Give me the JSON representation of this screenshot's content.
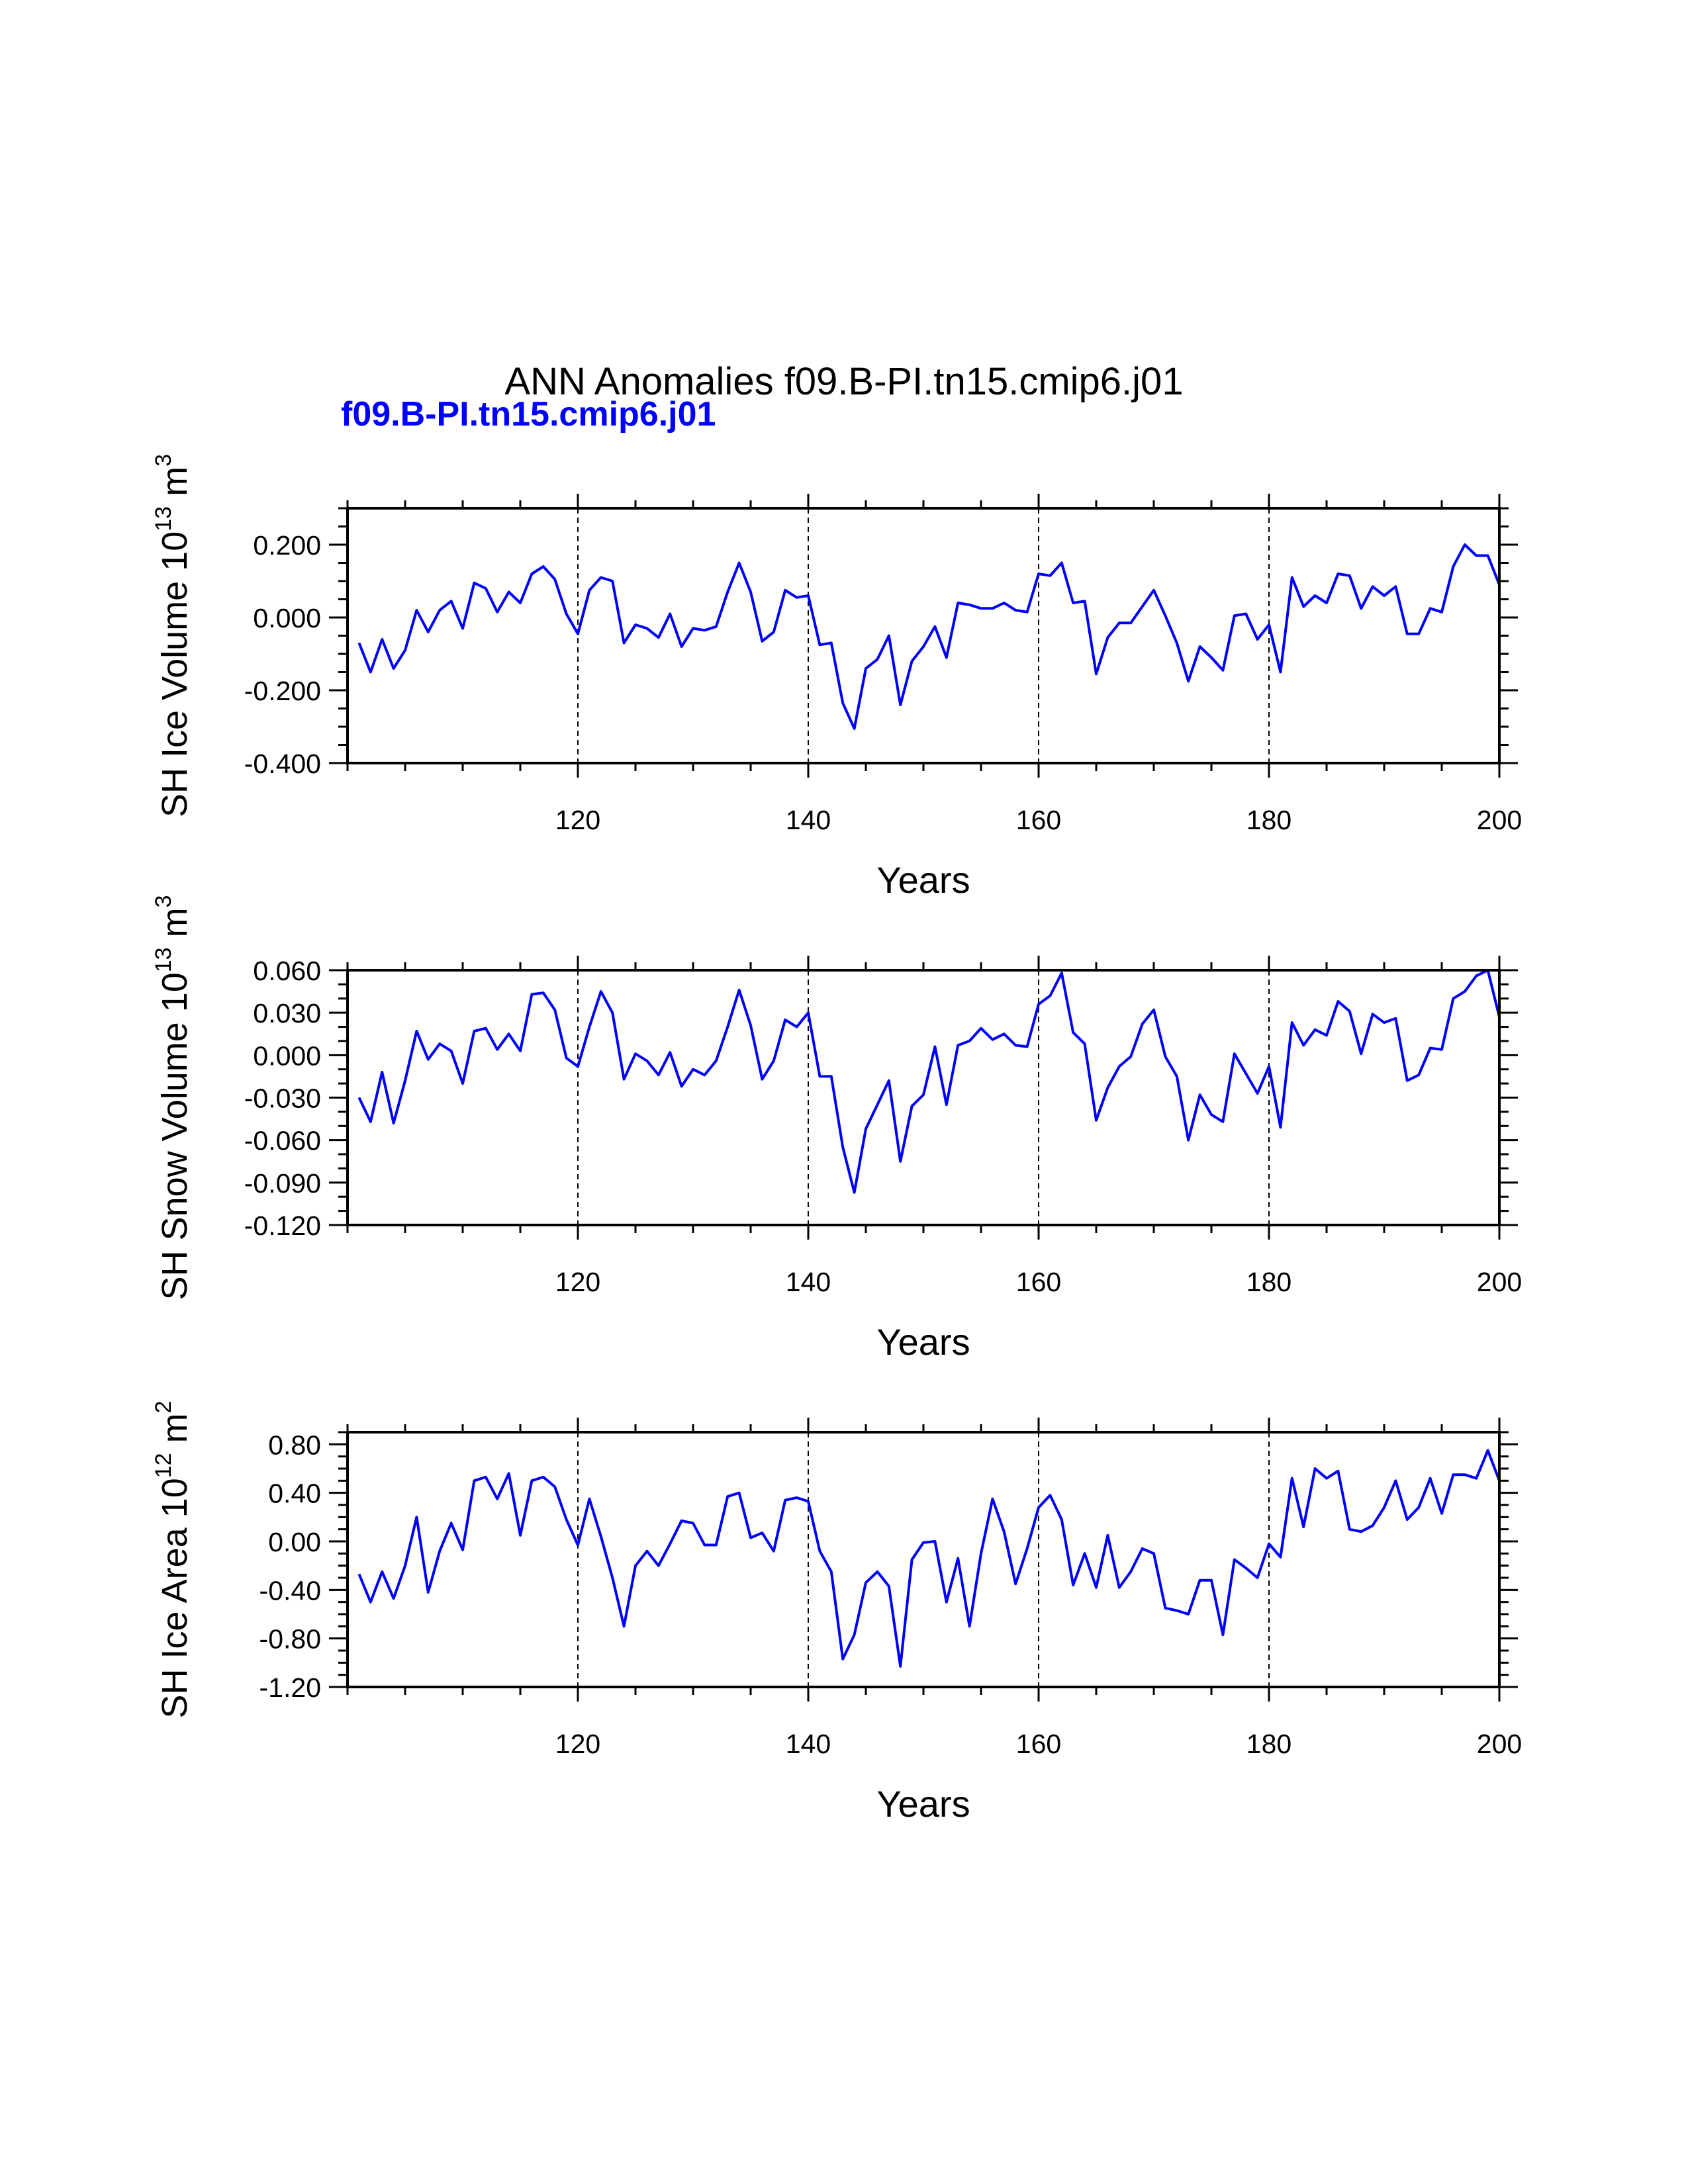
{
  "chart_data": [
    {
      "type": "line",
      "title": "ANN Anomalies f09.B-PI.tn15.cmip6.j01",
      "xlabel": "Years",
      "ylabel": "SH Ice Volume 10",
      "ylabel_exp": "13",
      "ylabel_unit": " m",
      "ylabel_unit_exp": "3",
      "xlim": [
        100,
        200
      ],
      "ylim": [
        -0.4,
        0.3
      ],
      "xticks": [
        120,
        140,
        160,
        180,
        200
      ],
      "yticks": [
        -0.4,
        -0.2,
        0.0,
        0.2
      ],
      "yticklabels": [
        "-0.400",
        "-0.200",
        "0.000",
        "0.200"
      ],
      "yminor": 0.05,
      "line_color": "#0000ff",
      "series": [
        {
          "name": "f09.B-PI.tn15.cmip6.j01",
          "x": [
            101,
            102,
            103,
            104,
            105,
            106,
            107,
            108,
            109,
            110,
            111,
            112,
            113,
            114,
            115,
            116,
            117,
            118,
            119,
            120,
            121,
            122,
            123,
            124,
            125,
            126,
            127,
            128,
            129,
            130,
            131,
            132,
            133,
            134,
            135,
            136,
            137,
            138,
            139,
            140,
            141,
            142,
            143,
            144,
            145,
            146,
            147,
            148,
            149,
            150,
            151,
            152,
            153,
            154,
            155,
            156,
            157,
            158,
            159,
            160,
            161,
            162,
            163,
            164,
            165,
            166,
            167,
            168,
            169,
            170,
            171,
            172,
            173,
            174,
            175,
            176,
            177,
            178,
            179,
            180,
            181,
            182,
            183,
            184,
            185,
            186,
            187,
            188,
            189,
            190,
            191,
            192,
            193,
            194,
            195,
            196,
            197,
            198,
            199,
            200
          ],
          "values": [
            -0.07,
            -0.15,
            -0.06,
            -0.14,
            -0.09,
            0.02,
            -0.04,
            0.02,
            0.045,
            -0.03,
            0.095,
            0.08,
            0.015,
            0.07,
            0.04,
            0.12,
            0.14,
            0.105,
            0.01,
            -0.045,
            0.075,
            0.11,
            0.1,
            -0.07,
            -0.02,
            -0.03,
            -0.055,
            0.01,
            -0.08,
            -0.03,
            -0.035,
            -0.025,
            0.07,
            0.15,
            0.07,
            -0.065,
            -0.04,
            0.075,
            0.055,
            0.06,
            -0.075,
            -0.07,
            -0.235,
            -0.305,
            -0.14,
            -0.115,
            -0.05,
            -0.24,
            -0.12,
            -0.08,
            -0.025,
            -0.11,
            0.04,
            0.035,
            0.025,
            0.025,
            0.04,
            0.02,
            0.015,
            0.12,
            0.115,
            0.15,
            0.04,
            0.045,
            -0.155,
            -0.055,
            -0.015,
            -0.015,
            0.03,
            0.075,
            0.005,
            -0.07,
            -0.175,
            -0.08,
            -0.11,
            -0.145,
            0.005,
            0.01,
            -0.06,
            -0.02,
            -0.15,
            0.11,
            0.03,
            0.06,
            0.04,
            0.12,
            0.115,
            0.025,
            0.085,
            0.06,
            0.085,
            -0.045,
            -0.045,
            0.025,
            0.015,
            0.14,
            0.2,
            0.17,
            0.17,
            0.09
          ]
        }
      ]
    },
    {
      "type": "line",
      "xlabel": "Years",
      "ylabel": "SH Snow Volume 10",
      "ylabel_exp": "13",
      "ylabel_unit": " m",
      "ylabel_unit_exp": "3",
      "xlim": [
        100,
        200
      ],
      "ylim": [
        -0.12,
        0.06
      ],
      "xticks": [
        120,
        140,
        160,
        180,
        200
      ],
      "yticks": [
        -0.12,
        -0.09,
        -0.06,
        -0.03,
        0.0,
        0.03,
        0.06
      ],
      "yticklabels": [
        "-0.120",
        "-0.090",
        "-0.060",
        "-0.030",
        "0.000",
        "0.030",
        "0.060"
      ],
      "yminor": 0.01,
      "line_color": "#0000ff",
      "series": [
        {
          "name": "f09.B-PI.tn15.cmip6.j01",
          "x": [
            101,
            102,
            103,
            104,
            105,
            106,
            107,
            108,
            109,
            110,
            111,
            112,
            113,
            114,
            115,
            116,
            117,
            118,
            119,
            120,
            121,
            122,
            123,
            124,
            125,
            126,
            127,
            128,
            129,
            130,
            131,
            132,
            133,
            134,
            135,
            136,
            137,
            138,
            139,
            140,
            141,
            142,
            143,
            144,
            145,
            146,
            147,
            148,
            149,
            150,
            151,
            152,
            153,
            154,
            155,
            156,
            157,
            158,
            159,
            160,
            161,
            162,
            163,
            164,
            165,
            166,
            167,
            168,
            169,
            170,
            171,
            172,
            173,
            174,
            175,
            176,
            177,
            178,
            179,
            180,
            181,
            182,
            183,
            184,
            185,
            186,
            187,
            188,
            189,
            190,
            191,
            192,
            193,
            194,
            195,
            196,
            197,
            198,
            199,
            200
          ],
          "values": [
            -0.03,
            -0.047,
            -0.012,
            -0.048,
            -0.018,
            0.017,
            -0.003,
            0.008,
            0.003,
            -0.02,
            0.017,
            0.019,
            0.004,
            0.015,
            0.003,
            0.043,
            0.044,
            0.032,
            -0.002,
            -0.008,
            0.02,
            0.045,
            0.03,
            -0.017,
            0.001,
            -0.004,
            -0.014,
            0.002,
            -0.022,
            -0.01,
            -0.014,
            -0.004,
            0.02,
            0.046,
            0.021,
            -0.017,
            -0.004,
            0.025,
            0.02,
            0.03,
            -0.015,
            -0.015,
            -0.065,
            -0.097,
            -0.052,
            -0.035,
            -0.018,
            -0.075,
            -0.036,
            -0.028,
            0.006,
            -0.035,
            0.007,
            0.01,
            0.019,
            0.011,
            0.015,
            0.007,
            0.006,
            0.036,
            0.042,
            0.058,
            0.016,
            0.008,
            -0.046,
            -0.023,
            -0.008,
            -0.001,
            0.022,
            0.032,
            -0.001,
            -0.015,
            -0.06,
            -0.028,
            -0.042,
            -0.047,
            0.001,
            -0.013,
            -0.027,
            -0.008,
            -0.051,
            0.023,
            0.007,
            0.018,
            0.014,
            0.038,
            0.031,
            0.001,
            0.029,
            0.023,
            0.026,
            -0.018,
            -0.014,
            0.005,
            0.004,
            0.04,
            0.045,
            0.056,
            0.06,
            0.027
          ]
        }
      ]
    },
    {
      "type": "line",
      "xlabel": "Years",
      "ylabel": "SH Ice Area 10",
      "ylabel_exp": "12",
      "ylabel_unit": " m",
      "ylabel_unit_exp": "2",
      "xlim": [
        100,
        200
      ],
      "ylim": [
        -1.2,
        0.9
      ],
      "xticks": [
        120,
        140,
        160,
        180,
        200
      ],
      "yticks": [
        -1.2,
        -0.8,
        -0.4,
        0.0,
        0.4,
        0.8
      ],
      "yticklabels": [
        "-1.20",
        "-0.80",
        "-0.40",
        "0.00",
        "0.40",
        "0.80"
      ],
      "yminor": 0.1,
      "line_color": "#0000ff",
      "series": [
        {
          "name": "f09.B-PI.tn15.cmip6.j01",
          "x": [
            101,
            102,
            103,
            104,
            105,
            106,
            107,
            108,
            109,
            110,
            111,
            112,
            113,
            114,
            115,
            116,
            117,
            118,
            119,
            120,
            121,
            122,
            123,
            124,
            125,
            126,
            127,
            128,
            129,
            130,
            131,
            132,
            133,
            134,
            135,
            136,
            137,
            138,
            139,
            140,
            141,
            142,
            143,
            144,
            145,
            146,
            147,
            148,
            149,
            150,
            151,
            152,
            153,
            154,
            155,
            156,
            157,
            158,
            159,
            160,
            161,
            162,
            163,
            164,
            165,
            166,
            167,
            168,
            169,
            170,
            171,
            172,
            173,
            174,
            175,
            176,
            177,
            178,
            179,
            180,
            181,
            182,
            183,
            184,
            185,
            186,
            187,
            188,
            189,
            190,
            191,
            192,
            193,
            194,
            195,
            196,
            197,
            198,
            199,
            200
          ],
          "values": [
            -0.27,
            -0.5,
            -0.25,
            -0.47,
            -0.2,
            0.2,
            -0.42,
            -0.08,
            0.15,
            -0.07,
            0.5,
            0.53,
            0.35,
            0.56,
            0.05,
            0.5,
            0.53,
            0.45,
            0.18,
            -0.03,
            0.35,
            0.04,
            -0.3,
            -0.7,
            -0.2,
            -0.08,
            -0.2,
            -0.02,
            0.17,
            0.15,
            -0.03,
            -0.03,
            0.37,
            0.4,
            0.03,
            0.07,
            -0.08,
            0.34,
            0.36,
            0.33,
            -0.08,
            -0.25,
            -0.97,
            -0.77,
            -0.34,
            -0.25,
            -0.37,
            -1.03,
            -0.15,
            -0.01,
            0.0,
            -0.5,
            -0.14,
            -0.7,
            -0.1,
            0.35,
            0.08,
            -0.35,
            -0.06,
            0.28,
            0.38,
            0.18,
            -0.36,
            -0.1,
            -0.38,
            0.05,
            -0.38,
            -0.25,
            -0.06,
            -0.1,
            -0.55,
            -0.57,
            -0.6,
            -0.32,
            -0.32,
            -0.77,
            -0.15,
            -0.22,
            -0.3,
            -0.02,
            -0.13,
            0.52,
            0.12,
            0.6,
            0.52,
            0.58,
            0.1,
            0.08,
            0.13,
            0.28,
            0.5,
            0.18,
            0.28,
            0.52,
            0.23,
            0.55,
            0.55,
            0.52,
            0.75,
            0.5
          ]
        }
      ]
    }
  ]
}
